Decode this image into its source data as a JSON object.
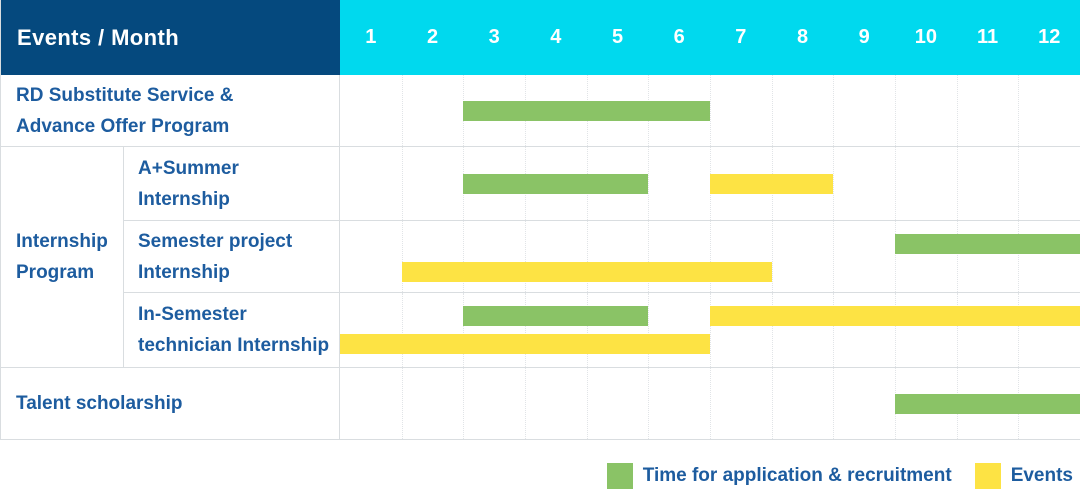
{
  "header": {
    "title": "Events / Month",
    "months": [
      "1",
      "2",
      "3",
      "4",
      "5",
      "6",
      "7",
      "8",
      "9",
      "10",
      "11",
      "12"
    ]
  },
  "colors": {
    "navy": "#05497e",
    "cyan": "#00d9ee",
    "green": "#8ac366",
    "yellow": "#fde344",
    "text_blue": "#1d5c9f",
    "grid": "#d9dde0"
  },
  "group": {
    "label": "Internship\nProgram"
  },
  "rows": [
    {
      "label": "RD Substitute Service &\nAdvance Offer Program",
      "bars": [
        {
          "color": "green",
          "start": 3,
          "end": 6,
          "line": "center"
        }
      ]
    },
    {
      "label": "A+Summer\nInternship",
      "bars": [
        {
          "color": "green",
          "start": 3,
          "end": 5,
          "line": "center"
        },
        {
          "color": "yellow",
          "start": 7,
          "end": 8,
          "line": "center"
        }
      ]
    },
    {
      "label": "Semester project\nInternship",
      "bars": [
        {
          "color": "green",
          "start": 10,
          "end": 12,
          "line": "top"
        },
        {
          "color": "yellow",
          "start": 2,
          "end": 7,
          "line": "bottom"
        }
      ]
    },
    {
      "label": "In-Semester\ntechnician Internship",
      "bars": [
        {
          "color": "green",
          "start": 3,
          "end": 5,
          "line": "top"
        },
        {
          "color": "yellow",
          "start": 7,
          "end": 12,
          "line": "top"
        },
        {
          "color": "yellow",
          "start": 1,
          "end": 6,
          "line": "bottom"
        }
      ]
    },
    {
      "label": "Talent scholarship",
      "bars": [
        {
          "color": "green",
          "start": 10,
          "end": 12,
          "line": "center"
        }
      ]
    }
  ],
  "legend": [
    {
      "color": "green",
      "label": "Time for application & recruitment"
    },
    {
      "color": "yellow",
      "label": "Events"
    }
  ],
  "chart_data": {
    "type": "bar",
    "subtype": "gantt",
    "title": "Events / Month",
    "xlabel": "Month",
    "x_ticks": [
      "1",
      "2",
      "3",
      "4",
      "5",
      "6",
      "7",
      "8",
      "9",
      "10",
      "11",
      "12"
    ],
    "x_range": [
      1,
      12
    ],
    "grid": true,
    "legend_position": "bottom-right",
    "series": [
      {
        "name": "Time for application & recruitment",
        "color": "#8ac366",
        "ranges": [
          {
            "category": "RD Substitute Service & Advance Offer Program",
            "start_month": 3,
            "end_month": 6
          },
          {
            "category": "Internship Program / A+Summer Internship",
            "start_month": 3,
            "end_month": 5
          },
          {
            "category": "Internship Program / Semester project Internship",
            "start_month": 10,
            "end_month": 12
          },
          {
            "category": "Internship Program / In-Semester technician Internship",
            "start_month": 3,
            "end_month": 5
          },
          {
            "category": "Talent scholarship",
            "start_month": 10,
            "end_month": 12
          }
        ]
      },
      {
        "name": "Events",
        "color": "#fde344",
        "ranges": [
          {
            "category": "Internship Program / A+Summer Internship",
            "start_month": 7,
            "end_month": 8
          },
          {
            "category": "Internship Program / Semester project Internship",
            "start_month": 2,
            "end_month": 7
          },
          {
            "category": "Internship Program / In-Semester technician Internship",
            "start_month": 7,
            "end_month": 12
          },
          {
            "category": "Internship Program / In-Semester technician Internship",
            "start_month": 1,
            "end_month": 6
          }
        ]
      }
    ],
    "categories": [
      "RD Substitute Service & Advance Offer Program",
      "Internship Program / A+Summer Internship",
      "Internship Program / Semester project Internship",
      "Internship Program / In-Semester technician Internship",
      "Talent scholarship"
    ]
  }
}
